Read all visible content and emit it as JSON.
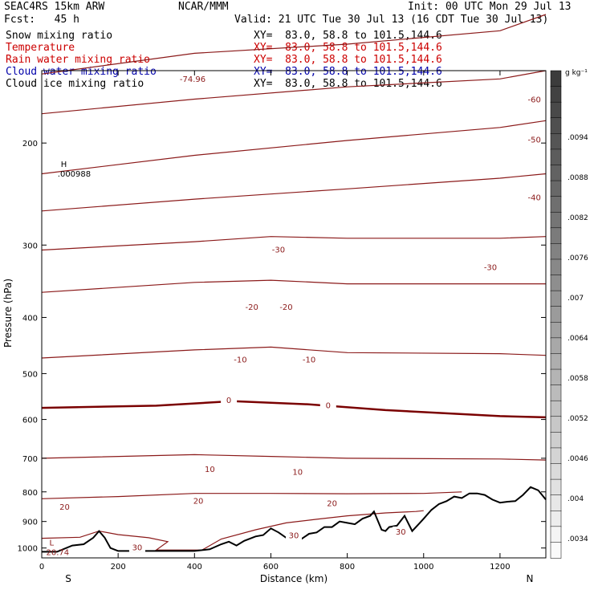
{
  "header": {
    "model": "SEAC4RS 15km ARW",
    "org": "NCAR/MMM",
    "init": "Init: 00 UTC Mon 29 Jul 13",
    "fcst": "Fcst:   45 h",
    "valid": "Valid: 21 UTC Tue 30 Jul 13 (16 CDT Tue 30 Jul 13)"
  },
  "fields": [
    {
      "name": "Snow mixing ratio",
      "xy": "XY=  83.0, 58.8 to 101.5,144.6",
      "color": "#000000"
    },
    {
      "name": "Temperature",
      "xy": "XY=  83.0, 58.8 to 101.5,144.6",
      "color": "#cc0000"
    },
    {
      "name": "Rain water mixing ratio",
      "xy": "XY=  83.0, 58.8 to 101.5,144.6",
      "color": "#cc0000"
    },
    {
      "name": "Cloud water mixing ratio",
      "xy": "XY=  83.0, 58.8 to 101.5,144.6",
      "color": "#0000aa"
    },
    {
      "name": "Cloud ice mixing ratio",
      "xy": "XY=  83.0, 58.8 to 101.5,144.6",
      "color": "#000000"
    }
  ],
  "chart_data": {
    "type": "line",
    "xlabel": "Distance (km)",
    "ylabel": "Pressure (hPa)",
    "xlim": [
      0,
      1320
    ],
    "ylim": [
      1040,
      150
    ],
    "x_ticks": [
      0,
      200,
      400,
      600,
      800,
      1000,
      1200
    ],
    "y_ticks": [
      200,
      300,
      400,
      500,
      600,
      700,
      800,
      900,
      1000
    ],
    "x_end_labels": {
      "left": "S",
      "right": "N"
    },
    "colorbar": {
      "unit": "g kg⁻¹",
      "ticks": [
        ".0094",
        ".0088",
        ".0082",
        ".0076",
        ".007",
        ".0064",
        ".0058",
        ".0052",
        ".0046",
        ".004",
        ".0034"
      ]
    },
    "extrema": [
      {
        "symbol": "H",
        "value": ".000988",
        "x": 50,
        "p": 220
      },
      {
        "symbol": "L",
        "value": "20.74",
        "x": 20,
        "p": 990
      }
    ],
    "top_label": "-74.96",
    "contour_labels": [
      {
        "text": "-60",
        "x": 1290,
        "p": 168
      },
      {
        "text": "-50",
        "x": 1290,
        "p": 197
      },
      {
        "text": "-40",
        "x": 1290,
        "p": 248
      },
      {
        "text": "-30",
        "x": 620,
        "p": 305
      },
      {
        "text": "-30",
        "x": 1175,
        "p": 327
      },
      {
        "text": "-20",
        "x": 550,
        "p": 383
      },
      {
        "text": "-20",
        "x": 640,
        "p": 383
      },
      {
        "text": "-10",
        "x": 520,
        "p": 472
      },
      {
        "text": "-10",
        "x": 700,
        "p": 472
      },
      {
        "text": "0",
        "x": 490,
        "p": 555
      },
      {
        "text": "0",
        "x": 750,
        "p": 566
      },
      {
        "text": "10",
        "x": 440,
        "p": 730
      },
      {
        "text": "10",
        "x": 670,
        "p": 738
      },
      {
        "text": "20",
        "x": 410,
        "p": 828
      },
      {
        "text": "20",
        "x": 760,
        "p": 836
      },
      {
        "text": "20",
        "x": 60,
        "p": 848
      },
      {
        "text": "30",
        "x": 660,
        "p": 950
      },
      {
        "text": "30",
        "x": 940,
        "p": 936
      },
      {
        "text": "30",
        "x": 250,
        "p": 996
      }
    ],
    "terrain_outline": [
      {
        "x": 0,
        "p": 1015
      },
      {
        "x": 40,
        "p": 1015
      },
      {
        "x": 80,
        "p": 990
      },
      {
        "x": 110,
        "p": 985
      },
      {
        "x": 135,
        "p": 960
      },
      {
        "x": 150,
        "p": 935
      },
      {
        "x": 165,
        "p": 960
      },
      {
        "x": 180,
        "p": 1000
      },
      {
        "x": 200,
        "p": 1012
      },
      {
        "x": 300,
        "p": 1012
      },
      {
        "x": 400,
        "p": 1012
      },
      {
        "x": 440,
        "p": 1005
      },
      {
        "x": 470,
        "p": 985
      },
      {
        "x": 490,
        "p": 975
      },
      {
        "x": 510,
        "p": 990
      },
      {
        "x": 530,
        "p": 972
      },
      {
        "x": 560,
        "p": 955
      },
      {
        "x": 580,
        "p": 950
      },
      {
        "x": 600,
        "p": 925
      },
      {
        "x": 620,
        "p": 940
      },
      {
        "x": 640,
        "p": 960
      },
      {
        "x": 680,
        "p": 965
      },
      {
        "x": 700,
        "p": 945
      },
      {
        "x": 720,
        "p": 940
      },
      {
        "x": 740,
        "p": 920
      },
      {
        "x": 760,
        "p": 920
      },
      {
        "x": 780,
        "p": 900
      },
      {
        "x": 800,
        "p": 905
      },
      {
        "x": 820,
        "p": 910
      },
      {
        "x": 840,
        "p": 890
      },
      {
        "x": 860,
        "p": 880
      },
      {
        "x": 870,
        "p": 865
      },
      {
        "x": 890,
        "p": 930
      },
      {
        "x": 900,
        "p": 935
      },
      {
        "x": 910,
        "p": 920
      },
      {
        "x": 930,
        "p": 915
      },
      {
        "x": 950,
        "p": 880
      },
      {
        "x": 970,
        "p": 935
      },
      {
        "x": 990,
        "p": 905
      },
      {
        "x": 1000,
        "p": 890
      },
      {
        "x": 1020,
        "p": 860
      },
      {
        "x": 1040,
        "p": 840
      },
      {
        "x": 1060,
        "p": 830
      },
      {
        "x": 1080,
        "p": 815
      },
      {
        "x": 1100,
        "p": 820
      },
      {
        "x": 1120,
        "p": 805
      },
      {
        "x": 1140,
        "p": 805
      },
      {
        "x": 1160,
        "p": 810
      },
      {
        "x": 1180,
        "p": 825
      },
      {
        "x": 1200,
        "p": 835
      },
      {
        "x": 1220,
        "p": 832
      },
      {
        "x": 1240,
        "p": 830
      },
      {
        "x": 1260,
        "p": 810
      },
      {
        "x": 1280,
        "p": 785
      },
      {
        "x": 1300,
        "p": 795
      },
      {
        "x": 1320,
        "p": 825
      }
    ],
    "isotherms": [
      {
        "label": "-74.96",
        "points": [
          {
            "x": 0,
            "p": 152
          },
          {
            "x": 400,
            "p": 140
          },
          {
            "x": 800,
            "p": 135
          },
          {
            "x": 1200,
            "p": 128
          },
          {
            "x": 1320,
            "p": 120
          }
        ]
      },
      {
        "label": "-60",
        "points": [
          {
            "x": 0,
            "p": 178
          },
          {
            "x": 400,
            "p": 168
          },
          {
            "x": 800,
            "p": 160
          },
          {
            "x": 1200,
            "p": 155
          },
          {
            "x": 1320,
            "p": 150
          }
        ]
      },
      {
        "label": "-50",
        "points": [
          {
            "x": 0,
            "p": 226
          },
          {
            "x": 400,
            "p": 210
          },
          {
            "x": 800,
            "p": 198
          },
          {
            "x": 1200,
            "p": 188
          },
          {
            "x": 1320,
            "p": 183
          }
        ]
      },
      {
        "label": "-40",
        "points": [
          {
            "x": 0,
            "p": 262
          },
          {
            "x": 400,
            "p": 250
          },
          {
            "x": 800,
            "p": 240
          },
          {
            "x": 1200,
            "p": 230
          },
          {
            "x": 1320,
            "p": 226
          }
        ]
      },
      {
        "label": "-30",
        "points": [
          {
            "x": 0,
            "p": 306
          },
          {
            "x": 400,
            "p": 296
          },
          {
            "x": 600,
            "p": 290
          },
          {
            "x": 800,
            "p": 292
          },
          {
            "x": 1200,
            "p": 292
          },
          {
            "x": 1320,
            "p": 290
          }
        ]
      },
      {
        "label": "-20",
        "points": [
          {
            "x": 0,
            "p": 362
          },
          {
            "x": 400,
            "p": 348
          },
          {
            "x": 600,
            "p": 345
          },
          {
            "x": 800,
            "p": 350
          },
          {
            "x": 1200,
            "p": 350
          },
          {
            "x": 1320,
            "p": 350
          }
        ]
      },
      {
        "label": "-10",
        "points": [
          {
            "x": 0,
            "p": 470
          },
          {
            "x": 400,
            "p": 455
          },
          {
            "x": 600,
            "p": 450
          },
          {
            "x": 800,
            "p": 460
          },
          {
            "x": 1200,
            "p": 462
          },
          {
            "x": 1320,
            "p": 465
          }
        ]
      },
      {
        "label": "0",
        "points": [
          {
            "x": 0,
            "p": 573
          },
          {
            "x": 300,
            "p": 568
          },
          {
            "x": 500,
            "p": 558
          },
          {
            "x": 700,
            "p": 565
          },
          {
            "x": 900,
            "p": 578
          },
          {
            "x": 1200,
            "p": 592
          },
          {
            "x": 1320,
            "p": 595
          }
        ]
      },
      {
        "label": "10",
        "points": [
          {
            "x": 0,
            "p": 700
          },
          {
            "x": 400,
            "p": 690
          },
          {
            "x": 600,
            "p": 695
          },
          {
            "x": 800,
            "p": 700
          },
          {
            "x": 1200,
            "p": 702
          },
          {
            "x": 1320,
            "p": 705
          }
        ]
      },
      {
        "label": "20",
        "points": [
          {
            "x": 0,
            "p": 822
          },
          {
            "x": 200,
            "p": 815
          },
          {
            "x": 400,
            "p": 805
          },
          {
            "x": 600,
            "p": 805
          },
          {
            "x": 800,
            "p": 806
          },
          {
            "x": 1000,
            "p": 805
          },
          {
            "x": 1100,
            "p": 800
          }
        ]
      },
      {
        "label": "30",
        "points": [
          {
            "x": 0,
            "p": 962
          },
          {
            "x": 100,
            "p": 958
          },
          {
            "x": 150,
            "p": 935
          },
          {
            "x": 200,
            "p": 948
          },
          {
            "x": 280,
            "p": 960
          },
          {
            "x": 330,
            "p": 975
          },
          {
            "x": 300,
            "p": 1008
          },
          {
            "x": 420,
            "p": 1008
          },
          {
            "x": 470,
            "p": 965
          },
          {
            "x": 560,
            "p": 930
          },
          {
            "x": 640,
            "p": 905
          },
          {
            "x": 720,
            "p": 892
          },
          {
            "x": 800,
            "p": 880
          },
          {
            "x": 900,
            "p": 870
          },
          {
            "x": 980,
            "p": 865
          },
          {
            "x": 1000,
            "p": 862
          }
        ]
      }
    ]
  }
}
